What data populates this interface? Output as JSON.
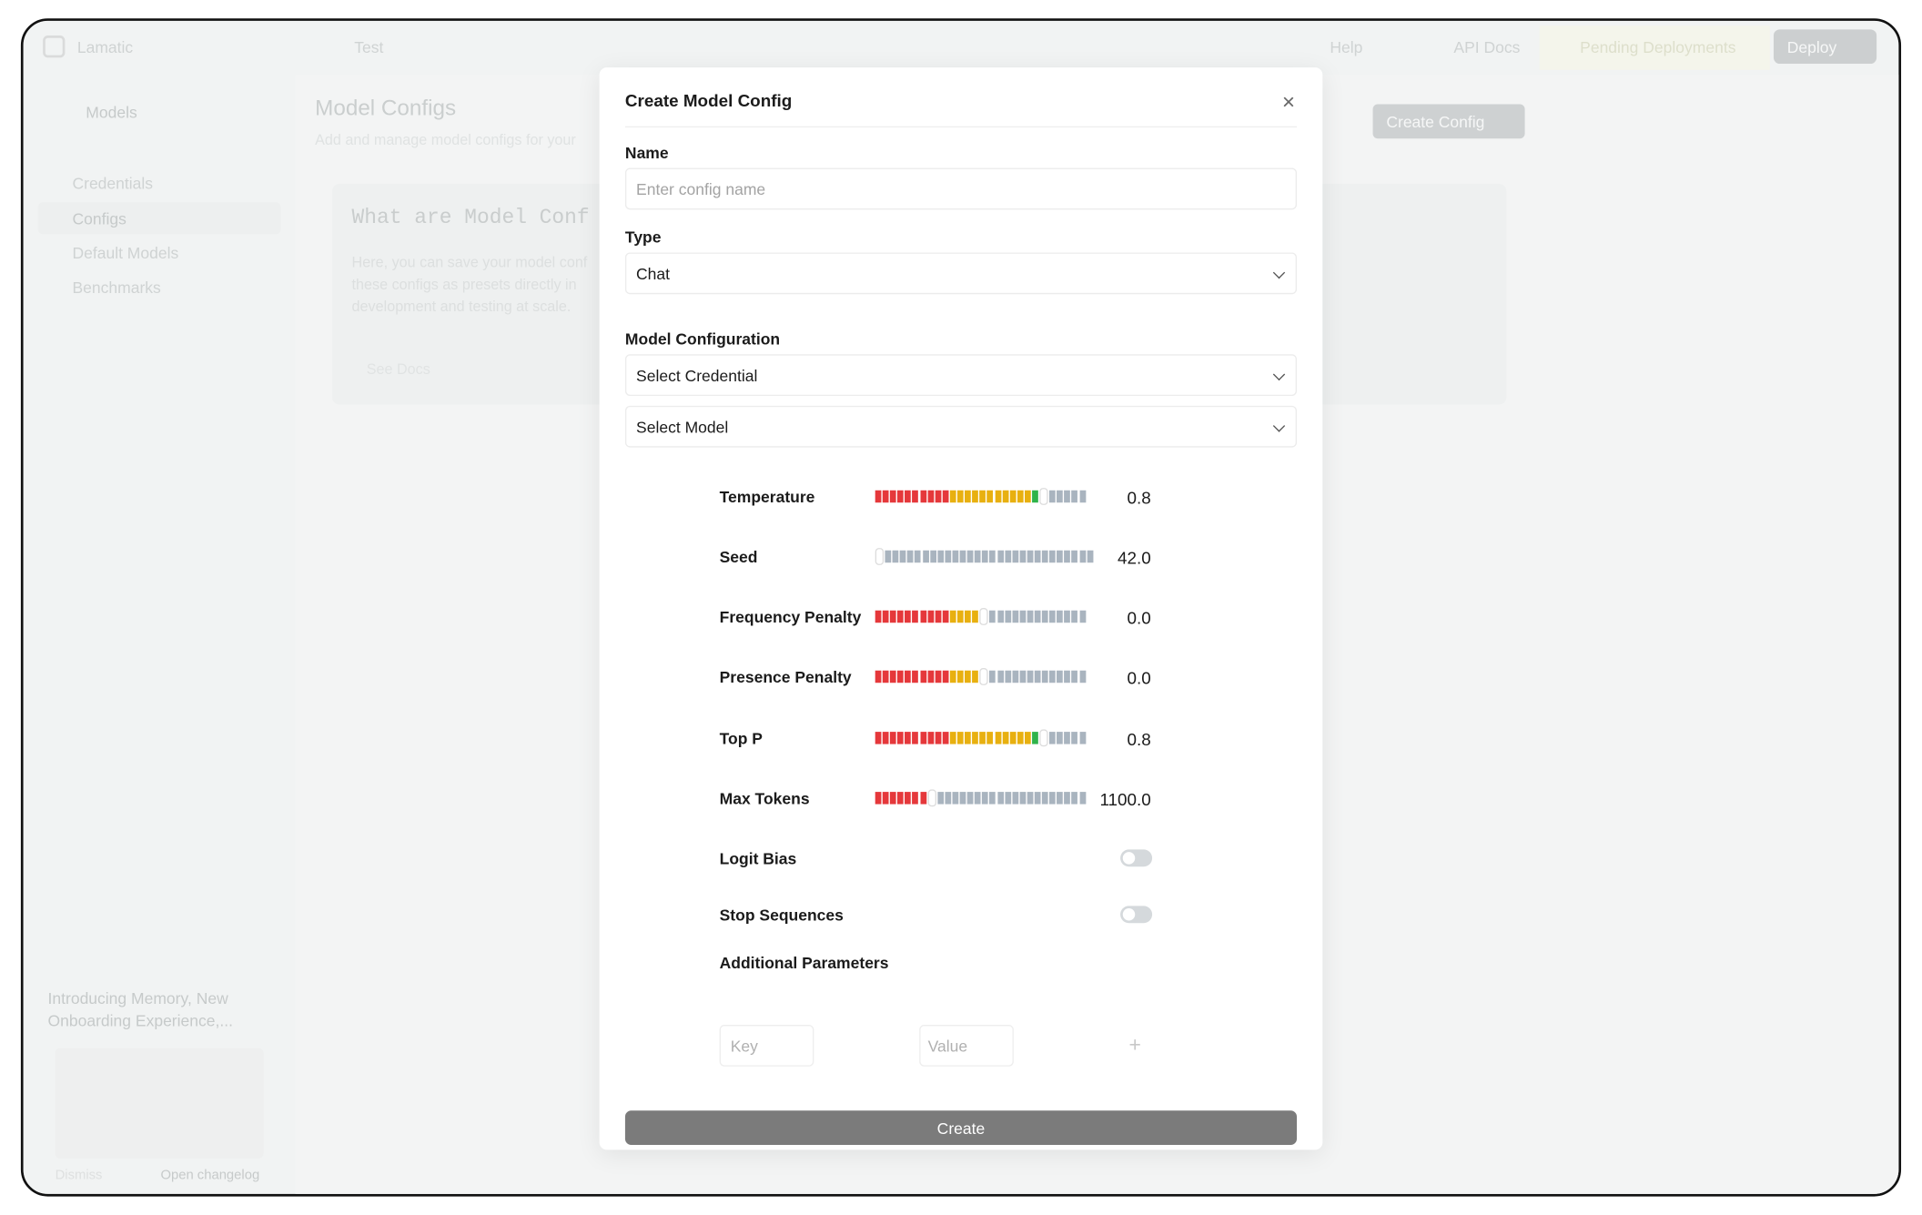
{
  "top_bar": {
    "workspace": "Lamatic",
    "project": "Test",
    "help": "Help",
    "api_docs": "API Docs",
    "pending": "Pending Deployments",
    "deploy": "Deploy"
  },
  "sidebar": {
    "back": "Models",
    "items": [
      "Credentials",
      "Configs",
      "Default Models",
      "Benchmarks"
    ],
    "changelog": {
      "title": "Introducing Memory, New Onboarding Experience,...",
      "dismiss": "Dismiss",
      "open": "Open changelog"
    }
  },
  "page": {
    "title": "Model Configs",
    "subtitle": "Add and manage model configs for your",
    "create_button": "Create Config",
    "card": {
      "title": "What are Model Conf",
      "lines": [
        "Here, you can save your model conf",
        "these configs as presets directly in",
        "development and testing at scale."
      ],
      "button": "See Docs"
    }
  },
  "modal": {
    "title": "Create Model Config",
    "name_label": "Name",
    "name_placeholder": "Enter config name",
    "type_label": "Type",
    "type_value": "Chat",
    "model_config_label": "Model Configuration",
    "credential_placeholder": "Select Credential",
    "model_placeholder": "Select Model",
    "params": [
      {
        "label": "Temperature",
        "value": "0.8"
      },
      {
        "label": "Seed",
        "value": "42.0"
      },
      {
        "label": "Frequency Penalty",
        "value": "0.0"
      },
      {
        "label": "Presence Penalty",
        "value": "0.0"
      },
      {
        "label": "Top P",
        "value": "0.8"
      },
      {
        "label": "Max Tokens",
        "value": "1100.0"
      }
    ],
    "toggles": [
      "Logit Bias",
      "Stop Sequences"
    ],
    "additional_label": "Additional Parameters",
    "key_placeholder": "Key",
    "value_placeholder": "Value",
    "submit": "Create"
  }
}
